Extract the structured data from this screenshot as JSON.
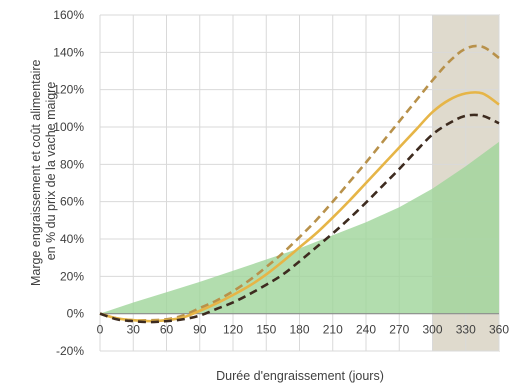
{
  "chart_data": {
    "type": "line",
    "xlabel": "Durée d'engraissement (jours)",
    "ylabel_lines": [
      "Marge engraissement et coût alimentaire",
      "en % du prix de la vache maigre"
    ],
    "x_ticks": [
      0,
      30,
      60,
      90,
      120,
      150,
      180,
      210,
      240,
      270,
      300,
      330,
      360
    ],
    "y_ticks": [
      -20,
      0,
      20,
      40,
      60,
      80,
      100,
      120,
      140,
      160
    ],
    "y_tick_labels": [
      "-20%",
      "0%",
      "20%",
      "40%",
      "60%",
      "80%",
      "100%",
      "120%",
      "140%",
      "160%"
    ],
    "xlim": [
      0,
      360
    ],
    "ylim": [
      -20,
      160
    ],
    "grid": true,
    "highlight_region": {
      "x_start": 300,
      "x_end": 360,
      "color": "#d9d4c4"
    },
    "area": {
      "color": "#9fd49a",
      "x": [
        0,
        30,
        60,
        90,
        120,
        150,
        180,
        210,
        240,
        270,
        300,
        330,
        360
      ],
      "values": [
        0,
        6,
        11.5,
        17,
        23,
        29,
        35,
        42,
        49,
        57,
        67,
        79,
        92
      ]
    },
    "series": [
      {
        "style": "dashed",
        "color": "#b8914a",
        "x": [
          0,
          15,
          30,
          45,
          60,
          75,
          90,
          105,
          120,
          135,
          150,
          165,
          180,
          195,
          210,
          225,
          240,
          255,
          270,
          285,
          300,
          315,
          330,
          345,
          360
        ],
        "values": [
          0,
          -2.5,
          -3.5,
          -3.5,
          -3,
          -1,
          3,
          7,
          12,
          18,
          25,
          32.5,
          41,
          50,
          60,
          70.5,
          81,
          92,
          103,
          114,
          125,
          135,
          142,
          143,
          137
        ]
      },
      {
        "style": "solid",
        "color": "#e6b547",
        "x": [
          0,
          15,
          30,
          45,
          60,
          75,
          90,
          105,
          120,
          135,
          150,
          165,
          180,
          195,
          210,
          225,
          240,
          255,
          270,
          285,
          300,
          315,
          330,
          345,
          360
        ],
        "values": [
          0,
          -2.5,
          -3.5,
          -4,
          -3.5,
          -2,
          1.5,
          5.5,
          10,
          15,
          21,
          28,
          35.5,
          43,
          51.5,
          60.5,
          70,
          79.5,
          89,
          98.5,
          108,
          114.5,
          118,
          118,
          112
        ]
      },
      {
        "style": "dashed",
        "color": "#3d2b1f",
        "x": [
          0,
          15,
          30,
          45,
          60,
          75,
          90,
          105,
          120,
          135,
          150,
          165,
          180,
          195,
          210,
          225,
          240,
          255,
          270,
          285,
          300,
          315,
          330,
          345,
          360
        ],
        "values": [
          0,
          -3,
          -4,
          -4.5,
          -4,
          -3,
          -1,
          2.5,
          6,
          10.5,
          15.5,
          21,
          28,
          35.5,
          43,
          51,
          59.5,
          68.5,
          77.5,
          87,
          96,
          102,
          106,
          106,
          102
        ]
      }
    ]
  }
}
